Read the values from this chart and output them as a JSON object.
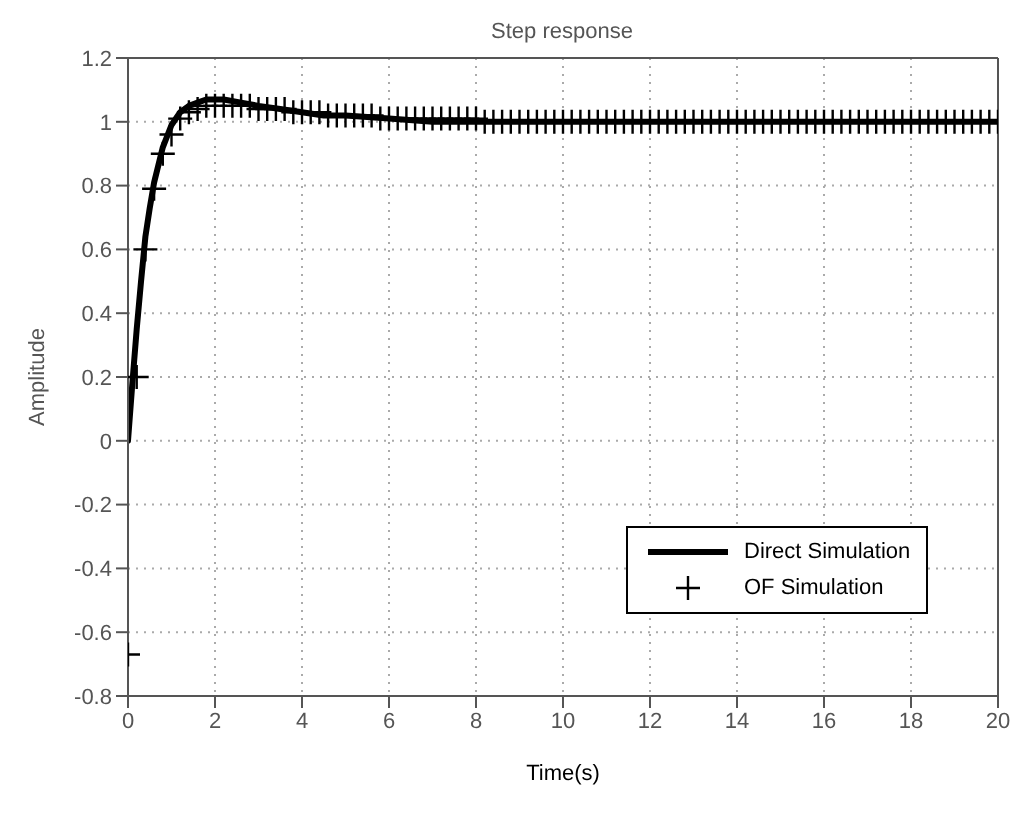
{
  "chart_data": {
    "type": "line",
    "title": "Step response",
    "xlabel": "Time(s)",
    "ylabel": "Amplitude",
    "xlim": [
      0,
      20
    ],
    "xticks": [
      0,
      2,
      4,
      6,
      8,
      10,
      12,
      14,
      16,
      18,
      20
    ],
    "ylim": [
      -0.8,
      1.2
    ],
    "yticks": [
      -0.8,
      -0.6,
      -0.4,
      -0.2,
      0,
      0.2,
      0.4,
      0.6,
      0.8,
      1,
      1.2
    ],
    "grid": true,
    "legend": "right",
    "series": [
      {
        "name": "Direct Simulation",
        "color": "#000000",
        "marker": "none",
        "line_style": "solid",
        "x": [
          0,
          0.1,
          0.2,
          0.3,
          0.4,
          0.5,
          0.6,
          0.8,
          1.0,
          1.2,
          1.4,
          1.6,
          1.8,
          2.2,
          2.6,
          3,
          3.5,
          4,
          4.5,
          5,
          6,
          7,
          8,
          10,
          12,
          14,
          16,
          18,
          20
        ],
        "values": [
          0,
          0.18,
          0.35,
          0.5,
          0.64,
          0.73,
          0.81,
          0.92,
          0.99,
          1.03,
          1.05,
          1.06,
          1.07,
          1.07,
          1.06,
          1.05,
          1.04,
          1.03,
          1.02,
          1.02,
          1.01,
          1.0,
          1.0,
          1.0,
          1.0,
          1.0,
          1.0,
          1.0,
          1.0
        ]
      },
      {
        "name": "OF Simulation",
        "type": "scatter",
        "color": "#000000",
        "marker": "cross",
        "x": [
          0,
          0.2,
          0.4,
          0.6,
          0.8,
          1,
          1.2,
          1.4,
          1.6,
          1.8,
          2,
          2.2,
          2.4,
          2.6,
          2.8,
          3,
          3.2,
          3.4,
          3.6,
          3.8,
          4,
          4.2,
          4.4,
          4.6,
          4.8,
          5,
          5.2,
          5.4,
          5.6,
          5.8,
          6,
          6.2,
          6.4,
          6.6,
          6.8,
          7,
          7.2,
          7.4,
          7.6,
          7.8,
          8,
          8.2,
          8.4,
          8.6,
          8.8,
          9,
          9.2,
          9.4,
          9.6,
          9.8,
          10,
          10.2,
          10.4,
          10.6,
          10.8,
          11,
          11.2,
          11.4,
          11.6,
          11.8,
          12,
          12.2,
          12.4,
          12.6,
          12.8,
          13,
          13.2,
          13.4,
          13.6,
          13.8,
          14,
          14.2,
          14.4,
          14.6,
          14.8,
          15,
          15.2,
          15.4,
          15.6,
          15.8,
          16,
          16.2,
          16.4,
          16.6,
          16.8,
          17,
          17.2,
          17.4,
          17.6,
          17.8,
          18,
          18.2,
          18.4,
          18.6,
          18.8,
          19,
          19.2,
          19.4,
          19.6,
          19.8,
          20
        ],
        "values": [
          -0.67,
          0.2,
          0.6,
          0.79,
          0.9,
          0.96,
          1.01,
          1.03,
          1.04,
          1.05,
          1.05,
          1.05,
          1.05,
          1.05,
          1.05,
          1.04,
          1.04,
          1.04,
          1.04,
          1.03,
          1.03,
          1.03,
          1.03,
          1.02,
          1.02,
          1.02,
          1.02,
          1.02,
          1.02,
          1.01,
          1.01,
          1.01,
          1.01,
          1.01,
          1.01,
          1.01,
          1.01,
          1.01,
          1.01,
          1.01,
          1.01,
          1.0,
          1.0,
          1.0,
          1.0,
          1.0,
          1.0,
          1.0,
          1.0,
          1.0,
          1.0,
          1.0,
          1.0,
          1.0,
          1.0,
          1.0,
          1.0,
          1.0,
          1.0,
          1.0,
          1.0,
          1.0,
          1.0,
          1.0,
          1.0,
          1.0,
          1.0,
          1.0,
          1.0,
          1.0,
          1.0,
          1.0,
          1.0,
          1.0,
          1.0,
          1.0,
          1.0,
          1.0,
          1.0,
          1.0,
          1.0,
          1.0,
          1.0,
          1.0,
          1.0,
          1.0,
          1.0,
          1.0,
          1.0,
          1.0,
          1.0,
          1.0,
          1.0,
          1.0,
          1.0,
          1.0,
          1.0,
          1.0,
          1.0,
          1.0,
          1.0
        ]
      }
    ]
  }
}
